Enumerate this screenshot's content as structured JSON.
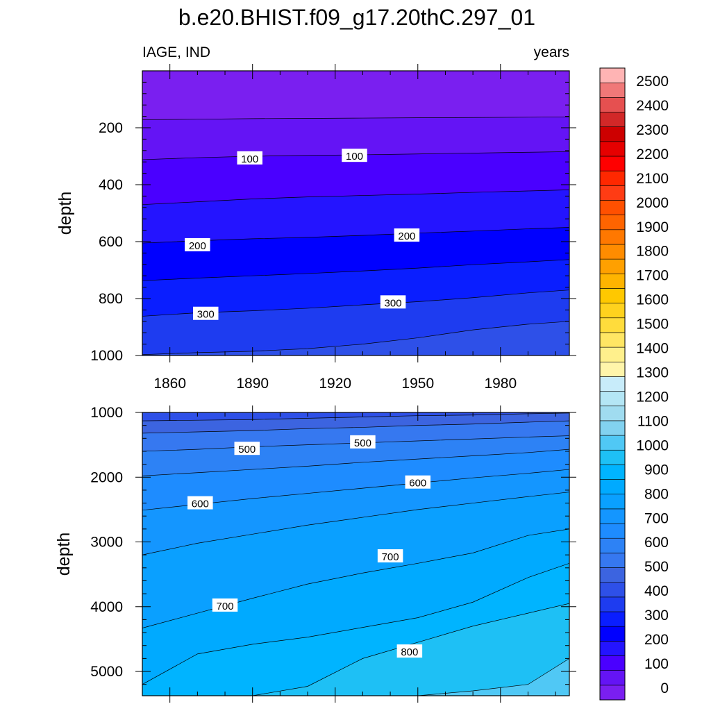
{
  "colors": {
    "levels": [
      "#7a1ff0",
      "#6414f5",
      "#4a00ff",
      "#2414ff",
      "#0000ff",
      "#0a1eff",
      "#1e3cf0",
      "#2e50e8",
      "#3c64e0",
      "#3678f0",
      "#2d82f5",
      "#1e8cff",
      "#1496ff",
      "#0aa0ff",
      "#00aaff",
      "#00b4ff",
      "#1ec0f5",
      "#50c8f5",
      "#82d2f0",
      "#a0dcf0",
      "#b4e6f5",
      "#c8ecfa",
      "#fff5aa",
      "#fff08c",
      "#ffe664",
      "#ffdc3c",
      "#ffd21e",
      "#ffc800",
      "#ffb400",
      "#ffa000",
      "#ff8c00",
      "#ff7800",
      "#ff6400",
      "#ff5000",
      "#ff3c14",
      "#ff2800",
      "#ff0000",
      "#e60000",
      "#cd0000",
      "#d22828",
      "#e65050",
      "#f07878",
      "#ffb4b4"
    ],
    "contour_line": "#000000",
    "frame": "#000000",
    "background": "#ffffff"
  },
  "chart_data": {
    "type": "contour",
    "title": "b.e20.BHIST.f09_g17.20thC.297_01",
    "left_string": "IAGE, IND",
    "right_string": "years",
    "x": [
      1850,
      1870,
      1890,
      1910,
      1930,
      1950,
      1970,
      1990,
      2005
    ],
    "xlim": [
      1850,
      2005
    ],
    "xticks": [
      1860,
      1890,
      1920,
      1950,
      1980
    ],
    "colorbar": {
      "levels": [
        0,
        50,
        100,
        150,
        200,
        250,
        300,
        350,
        400,
        450,
        500,
        550,
        600,
        650,
        700,
        750,
        800,
        850,
        900,
        950,
        1000,
        1050,
        1100,
        1150,
        1200,
        1250,
        1300,
        1350,
        1400,
        1450,
        1500,
        1550,
        1600,
        1650,
        1700,
        1750,
        1800,
        1850,
        1900,
        1950,
        2000,
        2050,
        2100,
        2150,
        2200,
        2250,
        2300,
        2350,
        2400,
        2450,
        2500
      ],
      "labels": [
        "0",
        "100",
        "200",
        "300",
        "400",
        "500",
        "600",
        "700",
        "800",
        "900",
        "1000",
        "1100",
        "1200",
        "1300",
        "1400",
        "1500",
        "1600",
        "1700",
        "1800",
        "1900",
        "2000",
        "2100",
        "2200",
        "2300",
        "2400",
        "2500"
      ]
    },
    "panels": [
      {
        "ylabel": "depth",
        "ylim": [
          0,
          1000
        ],
        "yticks": [
          200,
          400,
          600,
          800,
          1000
        ],
        "ytick_labels": [
          "200",
          "400",
          "600",
          "800",
          "1000"
        ],
        "contours": [
          {
            "level": 50,
            "depth": [
              172,
              170,
              168,
              167,
              166,
              165,
              164,
              163,
              162
            ]
          },
          {
            "level": 100,
            "depth": [
              312,
              305,
              300,
              297,
              295,
              292,
              289,
              286,
              284
            ]
          },
          {
            "level": 150,
            "depth": [
              470,
              460,
              450,
              443,
              438,
              433,
              427,
              422,
              418
            ]
          },
          {
            "level": 200,
            "depth": [
              605,
              597,
              590,
              585,
              578,
              570,
              563,
              555,
              550
            ]
          },
          {
            "level": 250,
            "depth": [
              737,
              728,
              720,
              712,
              703,
              693,
              681,
              671,
              663
            ]
          },
          {
            "level": 300,
            "depth": [
              862,
              850,
              843,
              834,
              822,
              811,
              797,
              780,
              770
            ]
          },
          {
            "level": 350,
            "depth": [
              997,
              990,
              985,
              976,
              960,
              938,
              910,
              890,
              880
            ]
          }
        ],
        "labels": [
          {
            "text": "100",
            "year": 1889,
            "depth": 307
          },
          {
            "text": "100",
            "year": 1927,
            "depth": 298
          },
          {
            "text": "200",
            "year": 1870,
            "depth": 612
          },
          {
            "text": "200",
            "year": 1946,
            "depth": 578
          },
          {
            "text": "300",
            "year": 1873,
            "depth": 853
          },
          {
            "text": "300",
            "year": 1941,
            "depth": 813
          }
        ]
      },
      {
        "ylabel": "depth",
        "ylim": [
          1000,
          5375
        ],
        "yticks": [
          1000,
          2000,
          3000,
          4000,
          5000
        ],
        "ytick_labels": [
          "1000",
          "2000",
          "3000",
          "4000",
          "5000"
        ],
        "contours": [
          {
            "level": 400,
            "depth": [
              1130,
              1120,
              1110,
              1090,
              1070,
              1050,
              1040,
              1020,
              1010
            ]
          },
          {
            "level": 450,
            "depth": [
              1320,
              1300,
              1280,
              1250,
              1230,
              1200,
              1180,
              1150,
              1130
            ]
          },
          {
            "level": 500,
            "depth": [
              1600,
              1570,
              1530,
              1500,
              1470,
              1440,
              1410,
              1380,
              1360
            ]
          },
          {
            "level": 550,
            "depth": [
              1980,
              1930,
              1880,
              1830,
              1770,
              1720,
              1670,
              1620,
              1570
            ]
          },
          {
            "level": 600,
            "depth": [
              2510,
              2420,
              2330,
              2250,
              2170,
              2090,
              2010,
              1940,
              1880
            ]
          },
          {
            "level": 650,
            "depth": [
              3200,
              3020,
              2880,
              2740,
              2620,
              2500,
              2400,
              2300,
              2230
            ]
          },
          {
            "level": 700,
            "depth": [
              4330,
              4100,
              3870,
              3650,
              3480,
              3330,
              3170,
              2900,
              2800
            ]
          },
          {
            "level": 750,
            "depth": [
              5200,
              4730,
              4580,
              4470,
              4320,
              4170,
              3930,
              3550,
              3330
            ]
          },
          {
            "level": 800,
            "depth": [
              5375,
              5375,
              5375,
              5230,
              4800,
              4550,
              4300,
              4100,
              3950
            ]
          },
          {
            "level": 850,
            "depth": [
              5375,
              5375,
              5375,
              5375,
              5375,
              5375,
              5300,
              5200,
              4800
            ]
          }
        ],
        "labels": [
          {
            "text": "500",
            "year": 1888,
            "depth": 1560
          },
          {
            "text": "500",
            "year": 1930,
            "depth": 1460
          },
          {
            "text": "600",
            "year": 1871,
            "depth": 2400
          },
          {
            "text": "600",
            "year": 1950,
            "depth": 2080
          },
          {
            "text": "700",
            "year": 1880,
            "depth": 3980
          },
          {
            "text": "700",
            "year": 1940,
            "depth": 3220
          },
          {
            "text": "800",
            "year": 1947,
            "depth": 4690
          }
        ]
      }
    ]
  }
}
